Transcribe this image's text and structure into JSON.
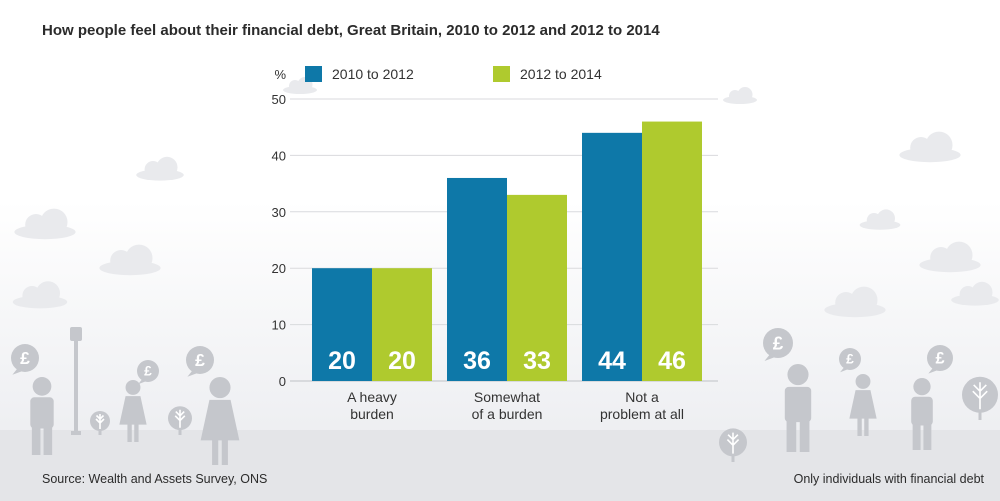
{
  "title": "How people feel about their financial debt, Great Britain, 2010 to 2012 and 2012 to 2014",
  "source": "Source: Wealth and Assets Survey, ONS",
  "note": "Only individuals with financial debt",
  "chart_data": {
    "type": "bar",
    "title": "How people feel about their financial debt, Great Britain, 2010 to 2012 and 2012 to 2014",
    "ylabel": "%",
    "xlabel": "",
    "ylim": [
      0,
      50
    ],
    "yticks": [
      "0",
      "10",
      "20",
      "30",
      "40",
      "50"
    ],
    "grid": true,
    "legend_position": "top",
    "categories": [
      [
        "A heavy",
        "burden"
      ],
      [
        "Somewhat",
        "of a burden"
      ],
      [
        "Not a",
        "problem at all"
      ]
    ],
    "series": [
      {
        "name": "2010 to 2012",
        "color": "#0e78a8",
        "values": [
          20,
          36,
          44
        ]
      },
      {
        "name": "2012 to 2014",
        "color": "#afca2e",
        "values": [
          20,
          33,
          46
        ]
      }
    ]
  },
  "decor": {
    "pound_symbol": "£",
    "cloud_color": "#e9eaed",
    "figure_color": "#c5c7cc"
  }
}
